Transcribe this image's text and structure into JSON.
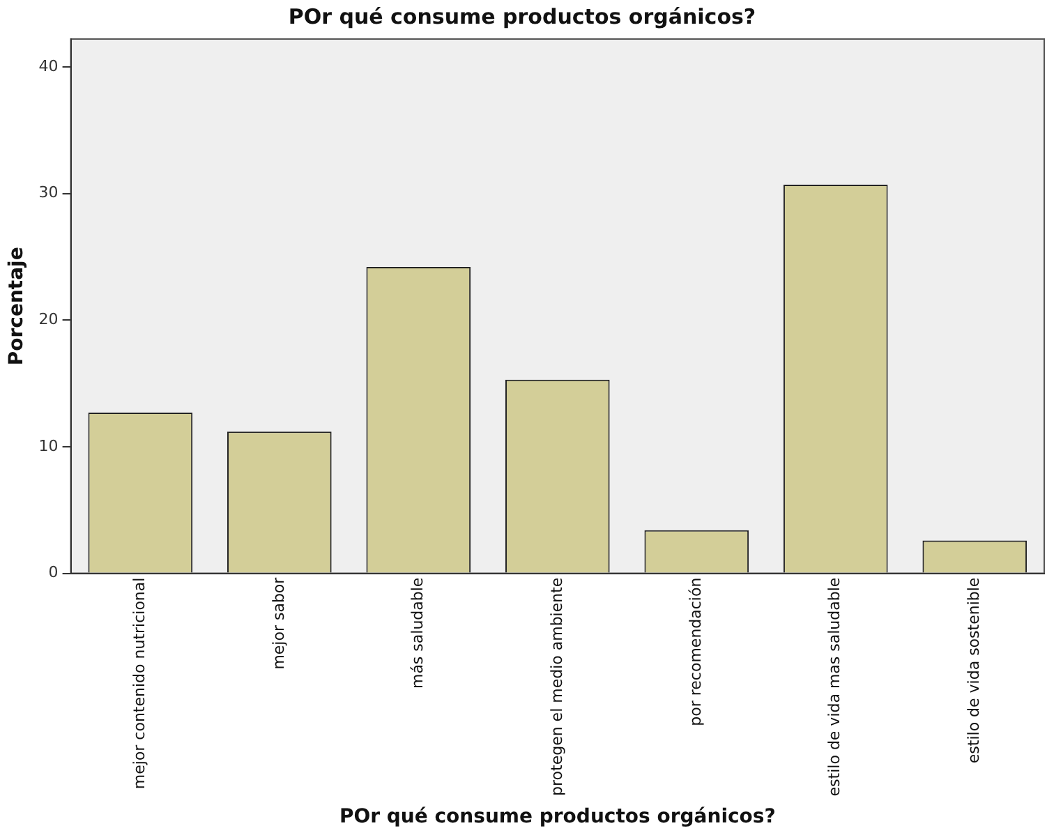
{
  "chart_data": {
    "type": "bar",
    "title": "POr qué consume productos orgánicos?",
    "xlabel": "POr qué consume productos orgánicos?",
    "ylabel": "Porcentaje",
    "categories": [
      "mejor contenido nutricional",
      "mejor sabor",
      "más saludable",
      "protegen el medio ambiente",
      "por recomendación",
      "estilo de vida mas saludable",
      "estilo de vida sostenible"
    ],
    "values": [
      12.7,
      11.2,
      24.2,
      15.3,
      3.4,
      30.7,
      2.6
    ],
    "color": "#d3ce98",
    "ylim": [
      0,
      42.2
    ],
    "yticks": [
      0,
      10,
      20,
      30,
      40
    ],
    "grid": false,
    "legend": false
  }
}
